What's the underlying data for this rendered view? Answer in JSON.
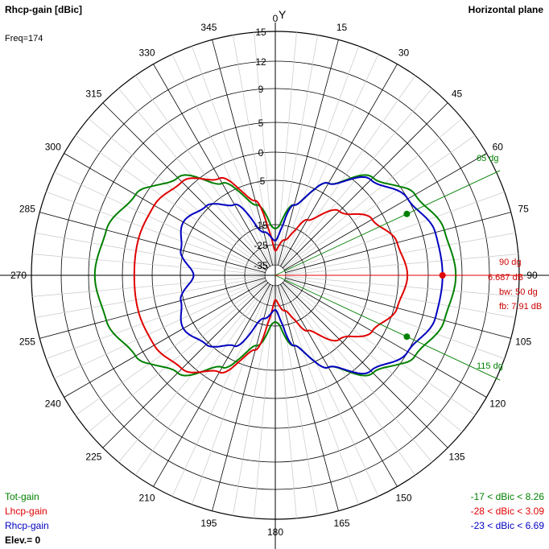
{
  "header": {
    "title": "Rhcp-gain [dBic]",
    "plane": "Horizontal plane",
    "freq": "Freq=174",
    "axis_y": "Y"
  },
  "legend": {
    "tot": {
      "label": "Tot-gain",
      "range": "-17 < dBic < 8.26",
      "color": "#008000"
    },
    "lhcp": {
      "label": "Lhcp-gain",
      "range": "-28 < dBic < 3.09",
      "color": "#e00000"
    },
    "rhcp": {
      "label": "Rhcp-gain",
      "range": "-23 < dBic < 6.69",
      "color": "#0000c0"
    },
    "elev": "Elev.= 0"
  },
  "markers": {
    "upper": "65 dg",
    "lower": "115 dg",
    "main_dir": "90 dg",
    "main_gain": "6.687 dB",
    "bw": "bw: 50 dg",
    "fb": "fb: 7.91 dB"
  },
  "chart_data": {
    "type": "polar",
    "plane": "horizontal",
    "radial_unit": "dBic",
    "radial_ticks": [
      "15",
      "12",
      "9",
      "5",
      "0",
      "-5",
      "-15",
      "-25",
      "-35"
    ],
    "radial_tick_values": [
      15,
      12,
      9,
      5,
      0,
      -5,
      -15,
      -25,
      -35
    ],
    "angle_ticks": [
      "0",
      "15",
      "30",
      "45",
      "60",
      "75",
      "90",
      "105",
      "120",
      "135",
      "150",
      "165",
      "180",
      "195",
      "210",
      "225",
      "240",
      "255",
      "270",
      "285",
      "300",
      "315",
      "330",
      "345"
    ],
    "angle_step_minor": 5,
    "series": [
      {
        "name": "Tot-gain",
        "color": "#008000",
        "angles": [
          0,
          15,
          30,
          45,
          60,
          75,
          90,
          105,
          120,
          135,
          150,
          165,
          180,
          195,
          210,
          225,
          240,
          255,
          270,
          285,
          300,
          315,
          330,
          345
        ],
        "values": [
          -17,
          -10,
          -3,
          2.5,
          6,
          7.6,
          8.26,
          7.6,
          6,
          2.5,
          -3,
          -10,
          -17,
          -10,
          -3,
          2.5,
          6,
          7.6,
          8.26,
          7.6,
          6,
          2.5,
          -3,
          -10
        ]
      },
      {
        "name": "Lhcp-gain",
        "color": "#e00000",
        "angles": [
          0,
          15,
          30,
          45,
          60,
          75,
          90,
          105,
          120,
          135,
          150,
          165,
          180,
          195,
          210,
          225,
          240,
          255,
          270,
          285,
          300,
          315,
          330,
          345
        ],
        "values": [
          -28,
          -22,
          -12,
          -6,
          -2,
          0.5,
          1.5,
          0.5,
          -2,
          -6,
          -12,
          -22,
          -28,
          -9,
          -2,
          1.5,
          2.8,
          3.09,
          3,
          3.09,
          2.8,
          1.5,
          -2,
          -9
        ]
      },
      {
        "name": "Rhcp-gain",
        "color": "#0000c0",
        "angles": [
          0,
          15,
          30,
          45,
          60,
          75,
          90,
          105,
          120,
          135,
          150,
          165,
          180,
          195,
          210,
          225,
          240,
          255,
          270,
          285,
          300,
          315,
          330,
          345
        ],
        "values": [
          -23,
          -10,
          -3,
          2,
          5,
          6.5,
          6.69,
          6.5,
          5,
          2,
          -3,
          -10,
          -23,
          -18,
          -8,
          -4.5,
          -3,
          -4.5,
          -8,
          -4.5,
          -3,
          -4.5,
          -8,
          -18
        ]
      }
    ],
    "markers": [
      {
        "angle": 65,
        "value": 3.69,
        "color": "#008000"
      },
      {
        "angle": 115,
        "value": 3.69,
        "color": "#008000"
      },
      {
        "angle": 90,
        "value": 6.687,
        "color": "#e00000"
      }
    ],
    "grid": true
  }
}
